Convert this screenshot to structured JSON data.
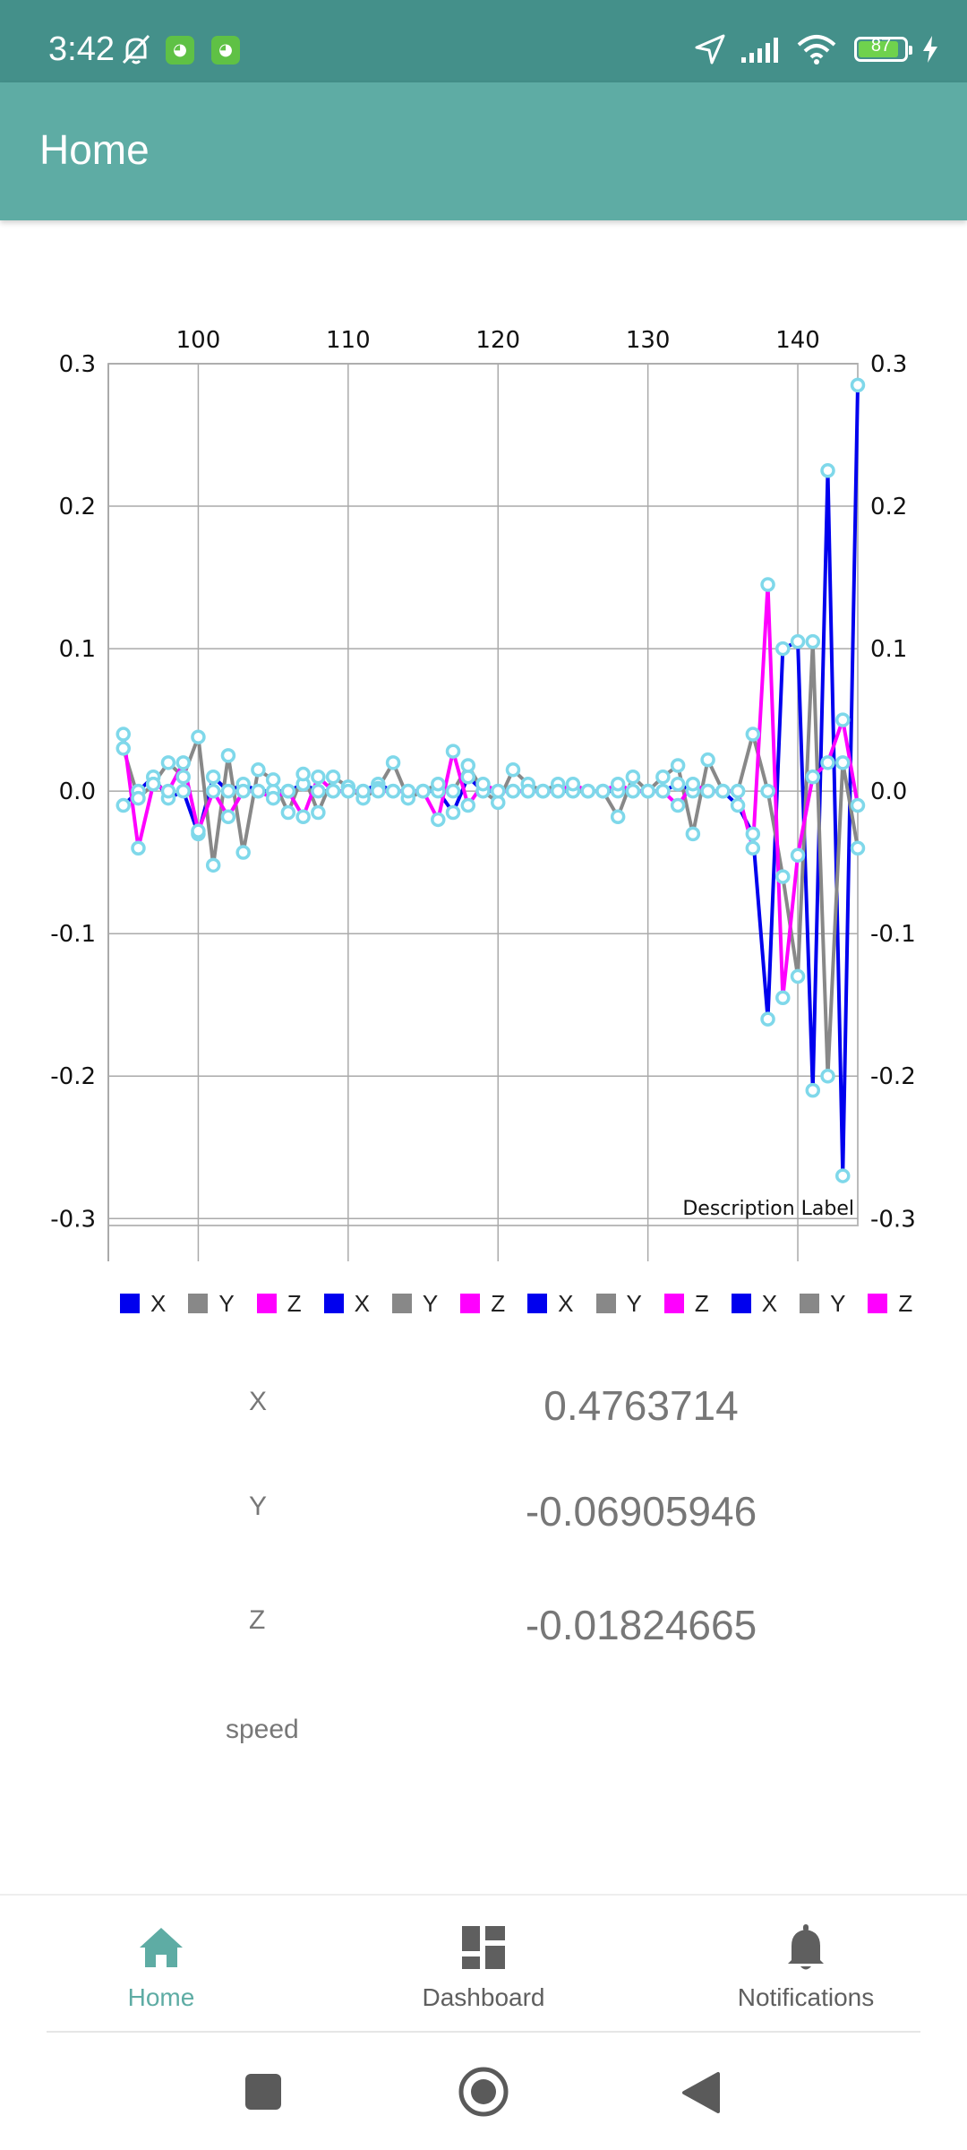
{
  "status_bar": {
    "time": "3:42",
    "battery": "87",
    "battery_level": 0.87,
    "icons": [
      "bell-off-icon",
      "notification-app-icon",
      "notification-app-icon",
      "location-arrow-icon",
      "signal-icon",
      "wifi-icon",
      "battery-icon",
      "charging-bolt-icon"
    ]
  },
  "app_bar": {
    "title": "Home"
  },
  "chart_data": {
    "type": "line",
    "x_ticks": [
      "100",
      "110",
      "120",
      "130",
      "140"
    ],
    "y_ticks": [
      "0.3",
      "0.2",
      "0.1",
      "0.0",
      "-0.1",
      "-0.2",
      "-0.3"
    ],
    "xlim": [
      94,
      144
    ],
    "ylim": [
      -0.33,
      0.3
    ],
    "description": "Description Label",
    "grid": true,
    "x_axis_position": "top",
    "y_axis": "left and right",
    "point_color": "#7fd8ea",
    "series": [
      {
        "name": "X",
        "color": "#0000ee",
        "x": [
          95,
          96,
          97,
          98,
          99,
          100,
          101,
          102,
          103,
          104,
          105,
          106,
          107,
          108,
          109,
          110,
          111,
          112,
          113,
          114,
          115,
          116,
          117,
          118,
          119,
          120,
          121,
          122,
          123,
          124,
          125,
          126,
          127,
          128,
          129,
          130,
          131,
          132,
          133,
          134,
          135,
          136,
          137,
          138,
          139,
          140,
          141,
          142,
          143,
          144
        ],
        "y": [
          -0.01,
          0.0,
          0.01,
          -0.005,
          0.0,
          -0.03,
          0.01,
          0.0,
          0.005,
          0.0,
          0.0,
          0.0,
          0.005,
          0.0,
          0.0,
          0.0,
          0.0,
          0.005,
          0.0,
          0.0,
          0.0,
          0.0,
          -0.015,
          0.01,
          0.0,
          0.0,
          0.0,
          0.0,
          0.0,
          0.0,
          0.0,
          0.0,
          0.0,
          0.0,
          0.0,
          0.0,
          0.0,
          0.005,
          0.0,
          0.0,
          0.0,
          -0.01,
          -0.03,
          -0.16,
          0.1,
          0.105,
          -0.21,
          0.225,
          -0.27,
          0.285
        ]
      },
      {
        "name": "Y",
        "color": "#888888",
        "x": [
          95,
          96,
          97,
          98,
          99,
          100,
          101,
          102,
          103,
          104,
          105,
          106,
          107,
          108,
          109,
          110,
          111,
          112,
          113,
          114,
          115,
          116,
          117,
          118,
          119,
          120,
          121,
          122,
          123,
          124,
          125,
          126,
          127,
          128,
          129,
          130,
          131,
          132,
          133,
          134,
          135,
          136,
          137,
          138,
          139,
          140,
          141,
          142,
          143,
          144
        ],
        "y": [
          0.03,
          -0.005,
          0.005,
          0.02,
          0.01,
          0.038,
          -0.052,
          0.025,
          -0.043,
          0.015,
          0.008,
          -0.015,
          0.012,
          -0.015,
          0.01,
          0.003,
          -0.005,
          0.002,
          0.02,
          -0.005,
          0.0,
          0.005,
          0.0,
          0.018,
          0.0,
          -0.008,
          0.015,
          0.005,
          0.0,
          0.005,
          0.0,
          0.0,
          0.0,
          -0.018,
          0.01,
          0.0,
          0.01,
          0.018,
          -0.03,
          0.022,
          0.0,
          0.0,
          0.04,
          0.0,
          -0.06,
          -0.13,
          0.105,
          -0.2,
          0.02,
          -0.04
        ]
      },
      {
        "name": "Z",
        "color": "#ff00ff",
        "x": [
          95,
          96,
          97,
          98,
          99,
          100,
          101,
          102,
          103,
          104,
          105,
          106,
          107,
          108,
          109,
          110,
          111,
          112,
          113,
          114,
          115,
          116,
          117,
          118,
          119,
          120,
          121,
          122,
          123,
          124,
          125,
          126,
          127,
          128,
          129,
          130,
          131,
          132,
          133,
          134,
          135,
          136,
          137,
          138,
          139,
          140,
          141,
          142,
          143,
          144
        ],
        "y": [
          0.04,
          -0.04,
          0.005,
          0.0,
          0.02,
          -0.028,
          0.0,
          -0.018,
          0.0,
          0.0,
          -0.005,
          0.0,
          -0.018,
          0.01,
          0.0,
          0.0,
          0.0,
          0.0,
          0.0,
          0.0,
          0.0,
          -0.02,
          0.028,
          -0.01,
          0.005,
          0.0,
          0.0,
          0.0,
          0.0,
          0.0,
          0.005,
          0.0,
          0.0,
          0.005,
          0.0,
          0.0,
          0.0,
          -0.01,
          0.005,
          0.0,
          0.0,
          0.0,
          -0.04,
          0.145,
          -0.145,
          -0.045,
          0.01,
          0.02,
          0.05,
          -0.01
        ]
      }
    ]
  },
  "legend": [
    {
      "label": "X",
      "color": "#0000ee"
    },
    {
      "label": "Y",
      "color": "#888888"
    },
    {
      "label": "Z",
      "color": "#ff00ff"
    },
    {
      "label": "X",
      "color": "#0000ee"
    },
    {
      "label": "Y",
      "color": "#888888"
    },
    {
      "label": "Z",
      "color": "#ff00ff"
    },
    {
      "label": "X",
      "color": "#0000ee"
    },
    {
      "label": "Y",
      "color": "#888888"
    },
    {
      "label": "Z",
      "color": "#ff00ff"
    },
    {
      "label": "X",
      "color": "#0000ee"
    },
    {
      "label": "Y",
      "color": "#888888"
    },
    {
      "label": "Z",
      "color": "#ff00ff"
    },
    {
      "label": "X",
      "color": "#0000ee"
    },
    {
      "label": "",
      "color": "#888888"
    }
  ],
  "readings": {
    "x_label": "X",
    "x_value": "0.4763714",
    "y_label": "Y",
    "y_value": "-0.06905946",
    "z_label": "Z",
    "z_value": "-0.01824665",
    "speed_label": "speed"
  },
  "bottom_nav": {
    "home": "Home",
    "dashboard": "Dashboard",
    "notifications": "Notifications",
    "active": "home",
    "active_color": "#5eaca4"
  },
  "system_nav": {
    "icons": [
      "recents-square-icon",
      "home-circle-icon",
      "back-triangle-icon"
    ]
  }
}
